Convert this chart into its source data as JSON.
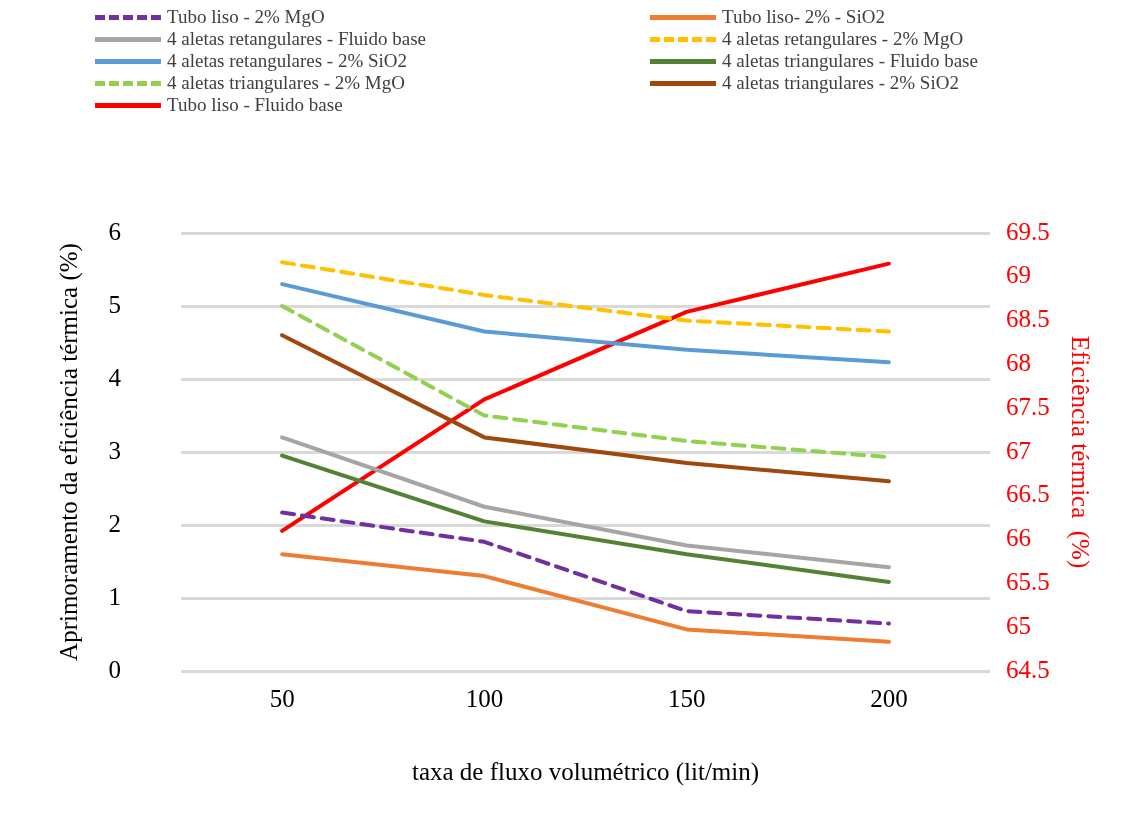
{
  "chart_data": {
    "type": "line",
    "xlabel": "taxa de fluxo volumétrico (lit/min)",
    "ylabel": "Aprimoramento da eficiência térmica (%)",
    "y2label": "Eficiência térmica  (%)",
    "categories": [
      "50",
      "100",
      "150",
      "200"
    ],
    "ylim": [
      0,
      6
    ],
    "yticks": [
      0,
      1,
      2,
      3,
      4,
      5,
      6
    ],
    "y2lim": [
      64.5,
      69.5
    ],
    "y2ticks": [
      64.5,
      65,
      65.5,
      66,
      66.5,
      67,
      67.5,
      68,
      68.5,
      69,
      69.5
    ],
    "grid": "y",
    "legend": "top",
    "marker": "none",
    "series": [
      {
        "name": "Tubo liso - 2% MgO",
        "color": "#7030a0",
        "line_style": "dashed",
        "values": [
          2.17,
          1.77,
          0.82,
          0.65
        ]
      },
      {
        "name": "Tubo liso- 2% - SiO2",
        "color": "#ed7d31",
        "values": [
          1.6,
          1.3,
          0.57,
          0.4
        ]
      },
      {
        "name": "4 aletas retangulares - Fluido base",
        "color": "#a5a5a5",
        "values": [
          3.2,
          2.25,
          1.72,
          1.42
        ]
      },
      {
        "name": "4 aletas retangulares - 2% MgO",
        "color": "#ffc000",
        "line_style": "dashed",
        "values": [
          5.6,
          5.15,
          4.8,
          4.65
        ]
      },
      {
        "name": "4 aletas retangulares - 2% SiO2",
        "color": "#5b9bd5",
        "values": [
          5.3,
          4.65,
          4.4,
          4.23
        ]
      },
      {
        "name": "4 aletas triangulares - Fluido base",
        "color": "#548235",
        "values": [
          2.95,
          2.05,
          1.6,
          1.22
        ]
      },
      {
        "name": "4 aletas triangulares - 2% MgO",
        "color": "#92d050",
        "line_style": "dashed",
        "values": [
          5.0,
          3.5,
          3.15,
          2.93
        ]
      },
      {
        "name": "4 aletas triangulares - 2% SiO2",
        "color": "#9e480e",
        "values": [
          4.6,
          3.2,
          2.85,
          2.6
        ]
      },
      {
        "name": "Tubo liso - Fluido base",
        "color": "#ff0000",
        "axis": "y2",
        "values": [
          66.1,
          67.6,
          68.6,
          69.15
        ]
      }
    ]
  }
}
